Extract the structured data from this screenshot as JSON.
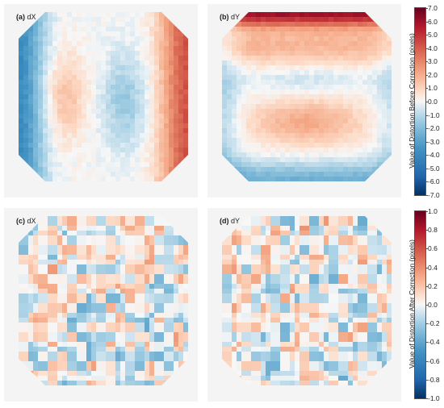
{
  "chart_data": [
    {
      "type": "heatmap",
      "panels": [
        {
          "id": "a",
          "tag": "(a)",
          "label": "dX",
          "pattern": "dx_before"
        },
        {
          "id": "b",
          "tag": "(b)",
          "label": "dY",
          "pattern": "dy_before"
        }
      ],
      "colorbar": {
        "label": "Value of Distortion Before Correction (pixels)",
        "range": [
          -7.0,
          7.0
        ],
        "ticks": [
          "7.0",
          "6.0",
          "5.0",
          "4.0",
          "3.0",
          "2.0",
          "1.0",
          "0.0",
          "-1.0",
          "-2.0",
          "-3.0",
          "-4.0",
          "-5.0",
          "-6.0",
          "-7.0"
        ]
      },
      "colormap": "RdBu_r"
    },
    {
      "type": "heatmap",
      "panels": [
        {
          "id": "c",
          "tag": "(c)",
          "label": "dX",
          "pattern": "dx_after"
        },
        {
          "id": "d",
          "tag": "(d)",
          "label": "dY",
          "pattern": "dy_after"
        }
      ],
      "colorbar": {
        "label": "Value of Distortion After Correction (pixels)",
        "range": [
          -1.0,
          1.0
        ],
        "ticks": [
          "1.0",
          "0.8",
          "0.6",
          "0.4",
          "0.2",
          "0.0",
          "-0.2",
          "-0.4",
          "-0.6",
          "-0.8",
          "-1.0"
        ]
      },
      "colormap": "RdBu_r"
    }
  ],
  "colors": {
    "neg_max": "#1f5fa8",
    "zero": "#f7f7f7",
    "pos_max": "#b0162b",
    "panel_bg": "#f4f4f4"
  }
}
